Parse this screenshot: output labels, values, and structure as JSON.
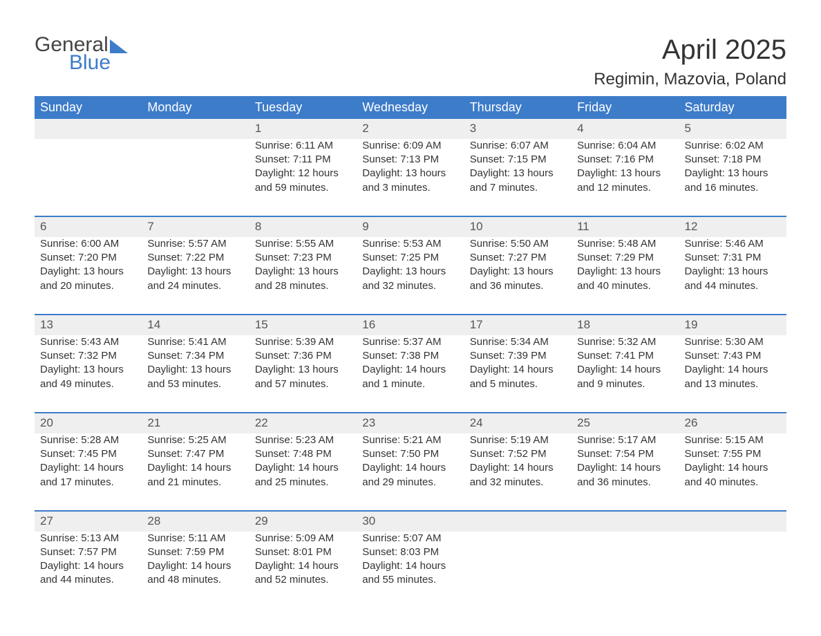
{
  "logo": {
    "general": "General",
    "blue": "Blue"
  },
  "title": "April 2025",
  "location": "Regimin, Mazovia, Poland",
  "colors": {
    "header_bg": "#3d7cc9",
    "header_text": "#ffffff",
    "daynum_bg": "#efefef",
    "daynum_border": "#3d7cc9",
    "text": "#333333",
    "logo_blue": "#3d7cc9"
  },
  "fonts": {
    "title_size": 40,
    "location_size": 24,
    "header_size": 18,
    "body_size": 15,
    "daynum_size": 17
  },
  "layout": {
    "columns": 7,
    "weeks": 5,
    "start_day": "Sunday"
  },
  "day_headers": [
    "Sunday",
    "Monday",
    "Tuesday",
    "Wednesday",
    "Thursday",
    "Friday",
    "Saturday"
  ],
  "weeks": [
    [
      {
        "day": "",
        "sunrise": "",
        "sunset": "",
        "daylight1": "",
        "daylight2": ""
      },
      {
        "day": "",
        "sunrise": "",
        "sunset": "",
        "daylight1": "",
        "daylight2": ""
      },
      {
        "day": "1",
        "sunrise": "Sunrise: 6:11 AM",
        "sunset": "Sunset: 7:11 PM",
        "daylight1": "Daylight: 12 hours",
        "daylight2": "and 59 minutes."
      },
      {
        "day": "2",
        "sunrise": "Sunrise: 6:09 AM",
        "sunset": "Sunset: 7:13 PM",
        "daylight1": "Daylight: 13 hours",
        "daylight2": "and 3 minutes."
      },
      {
        "day": "3",
        "sunrise": "Sunrise: 6:07 AM",
        "sunset": "Sunset: 7:15 PM",
        "daylight1": "Daylight: 13 hours",
        "daylight2": "and 7 minutes."
      },
      {
        "day": "4",
        "sunrise": "Sunrise: 6:04 AM",
        "sunset": "Sunset: 7:16 PM",
        "daylight1": "Daylight: 13 hours",
        "daylight2": "and 12 minutes."
      },
      {
        "day": "5",
        "sunrise": "Sunrise: 6:02 AM",
        "sunset": "Sunset: 7:18 PM",
        "daylight1": "Daylight: 13 hours",
        "daylight2": "and 16 minutes."
      }
    ],
    [
      {
        "day": "6",
        "sunrise": "Sunrise: 6:00 AM",
        "sunset": "Sunset: 7:20 PM",
        "daylight1": "Daylight: 13 hours",
        "daylight2": "and 20 minutes."
      },
      {
        "day": "7",
        "sunrise": "Sunrise: 5:57 AM",
        "sunset": "Sunset: 7:22 PM",
        "daylight1": "Daylight: 13 hours",
        "daylight2": "and 24 minutes."
      },
      {
        "day": "8",
        "sunrise": "Sunrise: 5:55 AM",
        "sunset": "Sunset: 7:23 PM",
        "daylight1": "Daylight: 13 hours",
        "daylight2": "and 28 minutes."
      },
      {
        "day": "9",
        "sunrise": "Sunrise: 5:53 AM",
        "sunset": "Sunset: 7:25 PM",
        "daylight1": "Daylight: 13 hours",
        "daylight2": "and 32 minutes."
      },
      {
        "day": "10",
        "sunrise": "Sunrise: 5:50 AM",
        "sunset": "Sunset: 7:27 PM",
        "daylight1": "Daylight: 13 hours",
        "daylight2": "and 36 minutes."
      },
      {
        "day": "11",
        "sunrise": "Sunrise: 5:48 AM",
        "sunset": "Sunset: 7:29 PM",
        "daylight1": "Daylight: 13 hours",
        "daylight2": "and 40 minutes."
      },
      {
        "day": "12",
        "sunrise": "Sunrise: 5:46 AM",
        "sunset": "Sunset: 7:31 PM",
        "daylight1": "Daylight: 13 hours",
        "daylight2": "and 44 minutes."
      }
    ],
    [
      {
        "day": "13",
        "sunrise": "Sunrise: 5:43 AM",
        "sunset": "Sunset: 7:32 PM",
        "daylight1": "Daylight: 13 hours",
        "daylight2": "and 49 minutes."
      },
      {
        "day": "14",
        "sunrise": "Sunrise: 5:41 AM",
        "sunset": "Sunset: 7:34 PM",
        "daylight1": "Daylight: 13 hours",
        "daylight2": "and 53 minutes."
      },
      {
        "day": "15",
        "sunrise": "Sunrise: 5:39 AM",
        "sunset": "Sunset: 7:36 PM",
        "daylight1": "Daylight: 13 hours",
        "daylight2": "and 57 minutes."
      },
      {
        "day": "16",
        "sunrise": "Sunrise: 5:37 AM",
        "sunset": "Sunset: 7:38 PM",
        "daylight1": "Daylight: 14 hours",
        "daylight2": "and 1 minute."
      },
      {
        "day": "17",
        "sunrise": "Sunrise: 5:34 AM",
        "sunset": "Sunset: 7:39 PM",
        "daylight1": "Daylight: 14 hours",
        "daylight2": "and 5 minutes."
      },
      {
        "day": "18",
        "sunrise": "Sunrise: 5:32 AM",
        "sunset": "Sunset: 7:41 PM",
        "daylight1": "Daylight: 14 hours",
        "daylight2": "and 9 minutes."
      },
      {
        "day": "19",
        "sunrise": "Sunrise: 5:30 AM",
        "sunset": "Sunset: 7:43 PM",
        "daylight1": "Daylight: 14 hours",
        "daylight2": "and 13 minutes."
      }
    ],
    [
      {
        "day": "20",
        "sunrise": "Sunrise: 5:28 AM",
        "sunset": "Sunset: 7:45 PM",
        "daylight1": "Daylight: 14 hours",
        "daylight2": "and 17 minutes."
      },
      {
        "day": "21",
        "sunrise": "Sunrise: 5:25 AM",
        "sunset": "Sunset: 7:47 PM",
        "daylight1": "Daylight: 14 hours",
        "daylight2": "and 21 minutes."
      },
      {
        "day": "22",
        "sunrise": "Sunrise: 5:23 AM",
        "sunset": "Sunset: 7:48 PM",
        "daylight1": "Daylight: 14 hours",
        "daylight2": "and 25 minutes."
      },
      {
        "day": "23",
        "sunrise": "Sunrise: 5:21 AM",
        "sunset": "Sunset: 7:50 PM",
        "daylight1": "Daylight: 14 hours",
        "daylight2": "and 29 minutes."
      },
      {
        "day": "24",
        "sunrise": "Sunrise: 5:19 AM",
        "sunset": "Sunset: 7:52 PM",
        "daylight1": "Daylight: 14 hours",
        "daylight2": "and 32 minutes."
      },
      {
        "day": "25",
        "sunrise": "Sunrise: 5:17 AM",
        "sunset": "Sunset: 7:54 PM",
        "daylight1": "Daylight: 14 hours",
        "daylight2": "and 36 minutes."
      },
      {
        "day": "26",
        "sunrise": "Sunrise: 5:15 AM",
        "sunset": "Sunset: 7:55 PM",
        "daylight1": "Daylight: 14 hours",
        "daylight2": "and 40 minutes."
      }
    ],
    [
      {
        "day": "27",
        "sunrise": "Sunrise: 5:13 AM",
        "sunset": "Sunset: 7:57 PM",
        "daylight1": "Daylight: 14 hours",
        "daylight2": "and 44 minutes."
      },
      {
        "day": "28",
        "sunrise": "Sunrise: 5:11 AM",
        "sunset": "Sunset: 7:59 PM",
        "daylight1": "Daylight: 14 hours",
        "daylight2": "and 48 minutes."
      },
      {
        "day": "29",
        "sunrise": "Sunrise: 5:09 AM",
        "sunset": "Sunset: 8:01 PM",
        "daylight1": "Daylight: 14 hours",
        "daylight2": "and 52 minutes."
      },
      {
        "day": "30",
        "sunrise": "Sunrise: 5:07 AM",
        "sunset": "Sunset: 8:03 PM",
        "daylight1": "Daylight: 14 hours",
        "daylight2": "and 55 minutes."
      },
      {
        "day": "",
        "sunrise": "",
        "sunset": "",
        "daylight1": "",
        "daylight2": ""
      },
      {
        "day": "",
        "sunrise": "",
        "sunset": "",
        "daylight1": "",
        "daylight2": ""
      },
      {
        "day": "",
        "sunrise": "",
        "sunset": "",
        "daylight1": "",
        "daylight2": ""
      }
    ]
  ]
}
